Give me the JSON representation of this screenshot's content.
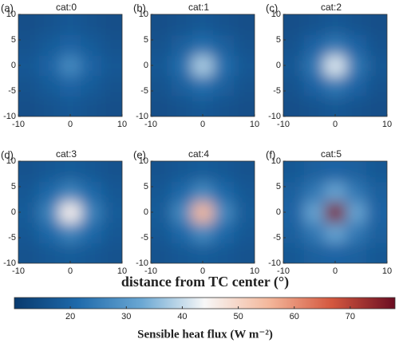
{
  "chart_data": {
    "type": "heatmap",
    "xlabel": "distance from TC center (°)",
    "colorbar_label": "Sensible heat flux (W m⁻²)",
    "x": [
      -8,
      -4,
      0,
      4,
      8
    ],
    "y": [
      -8,
      -4,
      0,
      4,
      8
    ],
    "xlim": [
      -10,
      10
    ],
    "ylim": [
      -10,
      10
    ],
    "xticks": [
      -10,
      0,
      10
    ],
    "yticks": [
      -10,
      -5,
      0,
      5,
      10
    ],
    "clim": [
      10,
      78
    ],
    "cticks": [
      20,
      30,
      40,
      50,
      60,
      70
    ],
    "colormap": [
      "#083a6e",
      "#1f6aab",
      "#6aa7d3",
      "#f7f7f7",
      "#f4b89c",
      "#d4583f",
      "#6b0d22"
    ],
    "panels": [
      {
        "label": "(a)",
        "title": "cat:0",
        "z": [
          [
            15,
            16,
            17,
            16,
            15
          ],
          [
            16,
            18,
            20,
            18,
            16
          ],
          [
            17,
            20,
            27,
            20,
            17
          ],
          [
            16,
            18,
            20,
            18,
            16
          ],
          [
            15,
            16,
            17,
            16,
            15
          ]
        ]
      },
      {
        "label": "(b)",
        "title": "cat:1",
        "z": [
          [
            15,
            16,
            17,
            16,
            15
          ],
          [
            16,
            19,
            22,
            19,
            16
          ],
          [
            17,
            22,
            38,
            22,
            17
          ],
          [
            16,
            19,
            22,
            19,
            16
          ],
          [
            15,
            16,
            17,
            16,
            15
          ]
        ]
      },
      {
        "label": "(c)",
        "title": "cat:2",
        "z": [
          [
            15,
            16,
            17,
            16,
            15
          ],
          [
            16,
            20,
            24,
            20,
            16
          ],
          [
            17,
            24,
            42,
            24,
            17
          ],
          [
            16,
            20,
            24,
            20,
            16
          ],
          [
            15,
            16,
            17,
            16,
            15
          ]
        ]
      },
      {
        "label": "(d)",
        "title": "cat:3",
        "z": [
          [
            16,
            17,
            18,
            17,
            16
          ],
          [
            17,
            21,
            26,
            21,
            17
          ],
          [
            18,
            26,
            45,
            26,
            18
          ],
          [
            17,
            21,
            26,
            21,
            17
          ],
          [
            16,
            17,
            18,
            17,
            16
          ]
        ]
      },
      {
        "label": "(e)",
        "title": "cat:4",
        "z": [
          [
            16,
            17,
            18,
            17,
            16
          ],
          [
            17,
            21,
            27,
            21,
            17
          ],
          [
            18,
            27,
            55,
            27,
            18
          ],
          [
            17,
            21,
            27,
            21,
            17
          ],
          [
            16,
            17,
            18,
            17,
            16
          ]
        ]
      },
      {
        "label": "(f)",
        "title": "cat:5",
        "z": [
          [
            17,
            19,
            20,
            19,
            17
          ],
          [
            19,
            24,
            32,
            24,
            19
          ],
          [
            20,
            32,
            76,
            32,
            20
          ],
          [
            19,
            24,
            32,
            24,
            19
          ],
          [
            17,
            19,
            20,
            19,
            17
          ]
        ]
      }
    ]
  }
}
